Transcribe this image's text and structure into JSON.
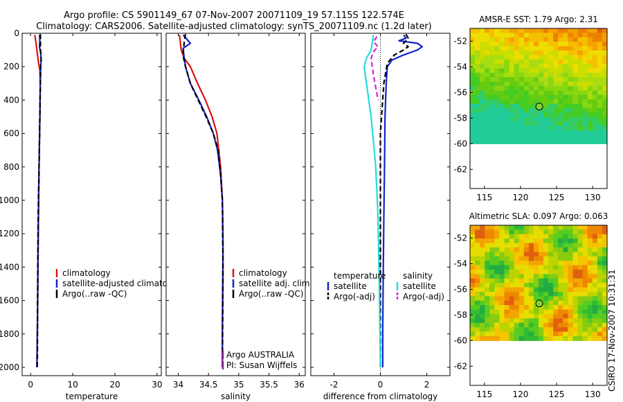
{
  "header": {
    "line1": "Argo profile: CS 5901149_67 07-Nov-2007 20071109_19 57.115S 122.574E",
    "line2": "Climatology: CARS2006. Satellite-adjusted climatology: synTS_20071109.nc (1.2d later)"
  },
  "credit": "CSIRO 17-Nov-2007 10:31:31",
  "colors": {
    "climatology": "#dd1111",
    "satellite": "#1122cc",
    "argo": "#000000",
    "salinity_satellite": "#22dddd",
    "salinity_argo": "#dd22dd",
    "platform": "#882299"
  },
  "chart_data": [
    {
      "type": "line",
      "xlabel": "temperature",
      "ylabel": "",
      "xlim": [
        -2,
        31
      ],
      "ylim": [
        2050,
        0
      ],
      "xticks": [
        0,
        10,
        20,
        30
      ],
      "yticks": [
        0,
        200,
        400,
        600,
        800,
        1000,
        1200,
        1400,
        1600,
        1800,
        2000
      ],
      "legend": [
        "climatology",
        "satellite-adjusted climatology",
        "Argo(..raw -QC)"
      ],
      "legend_position": "lower-right",
      "series": [
        {
          "name": "climatology",
          "color": "#dd1111",
          "dash": false,
          "x": [
            1.0,
            1.3,
            1.6,
            1.9,
            2.2,
            2.3,
            2.2,
            2.0,
            1.9,
            1.8,
            1.7,
            1.6,
            1.5
          ],
          "y": [
            10,
            60,
            120,
            180,
            220,
            300,
            500,
            800,
            1000,
            1200,
            1500,
            1800,
            2000
          ]
        },
        {
          "name": "satellite-adjusted climatology",
          "color": "#1122cc",
          "dash": false,
          "x": [
            2.1,
            2.2,
            2.1,
            2.4,
            2.5,
            2.4,
            2.3,
            2.2,
            2.0,
            1.9,
            1.8,
            1.7,
            1.6,
            1.5
          ],
          "y": [
            10,
            40,
            80,
            120,
            160,
            200,
            300,
            500,
            800,
            1000,
            1300,
            1600,
            1800,
            2000
          ]
        },
        {
          "name": "Argo(..raw -QC)",
          "color": "#000000",
          "dash": true,
          "x": [
            2.3,
            2.4,
            2.3,
            2.4,
            2.5,
            2.4,
            2.3,
            2.2,
            2.0,
            1.8,
            1.7,
            1.6
          ],
          "y": [
            5,
            40,
            80,
            110,
            150,
            200,
            300,
            500,
            800,
            1100,
            1500,
            2000
          ]
        }
      ]
    },
    {
      "type": "line",
      "xlabel": "salinity",
      "ylabel": "",
      "xlim": [
        33.8,
        36.1
      ],
      "ylim": [
        2050,
        0
      ],
      "xticks": [
        34,
        34.5,
        35,
        35.5,
        36
      ],
      "yticks": [
        0,
        200,
        400,
        600,
        800,
        1000,
        1200,
        1400,
        1600,
        1800,
        2000
      ],
      "legend": [
        "climatology",
        "satellite adj. clim.",
        "Argo(..raw -QC)"
      ],
      "legend_position": "lower-right",
      "annotations": [
        "Argo AUSTRALIA",
        "PI: Susan Wijffels"
      ],
      "series": [
        {
          "name": "climatology",
          "color": "#dd1111",
          "dash": false,
          "x": [
            34.02,
            34.05,
            34.1,
            34.2,
            34.32,
            34.45,
            34.56,
            34.64,
            34.7,
            34.73,
            34.74,
            34.74,
            34.73,
            34.73
          ],
          "y": [
            10,
            100,
            150,
            200,
            300,
            400,
            500,
            600,
            800,
            1000,
            1200,
            1500,
            1800,
            2000
          ]
        },
        {
          "name": "satellite adj. clim.",
          "color": "#1122cc",
          "dash": false,
          "x": [
            34.08,
            34.2,
            34.08,
            34.1,
            34.12,
            34.2,
            34.34,
            34.47,
            34.58,
            34.65,
            34.7,
            34.73,
            34.74,
            34.73,
            34.73
          ],
          "y": [
            10,
            60,
            90,
            150,
            200,
            300,
            400,
            500,
            600,
            700,
            850,
            1000,
            1300,
            1700,
            2000
          ]
        },
        {
          "name": "Argo(..raw -QC)",
          "color": "#000000",
          "dash": true,
          "x": [
            34.12,
            34.1,
            34.08,
            34.09,
            34.12,
            34.2,
            34.33,
            34.46,
            34.58,
            34.66,
            34.7,
            34.73,
            34.74,
            34.73
          ],
          "y": [
            5,
            50,
            120,
            150,
            200,
            300,
            400,
            500,
            600,
            700,
            850,
            1000,
            1400,
            2000
          ]
        },
        {
          "name": "platform",
          "color": "#882299",
          "dash": false,
          "x": [
            34.73,
            34.73
          ],
          "y": [
            1920,
            2000
          ]
        }
      ]
    },
    {
      "type": "line",
      "xlabel": "difference from climatology",
      "ylabel": "",
      "xlim": [
        -3,
        3
      ],
      "ylim": [
        2050,
        0
      ],
      "xticks": [
        -2,
        0,
        2
      ],
      "yticks": [
        0,
        200,
        400,
        600,
        800,
        1000,
        1200,
        1400,
        1600,
        1800,
        2000
      ],
      "legend_groups": [
        {
          "title": "temperature",
          "items": [
            "satellite",
            "Argo(-adj)"
          ]
        },
        {
          "title": "salinity",
          "items": [
            "satellite",
            "Argo(-adj)"
          ]
        }
      ],
      "legend_position": "lower-center",
      "series": [
        {
          "name": "temperature satellite",
          "color": "#1122cc",
          "dash": false,
          "x": [
            1.0,
            1.1,
            0.8,
            1.6,
            1.8,
            1.6,
            1.0,
            0.5,
            0.3,
            0.25,
            0.2,
            0.18,
            0.15,
            0.12,
            0.1,
            0.1
          ],
          "y": [
            10,
            30,
            45,
            60,
            80,
            100,
            130,
            160,
            200,
            300,
            500,
            800,
            1100,
            1500,
            1800,
            2000
          ]
        },
        {
          "name": "temperature Argo(-adj)",
          "color": "#000000",
          "dash": true,
          "x": [
            1.1,
            1.2,
            1.0,
            1.2,
            1.0,
            0.6,
            0.3,
            0.15,
            0.0,
            0.0,
            0.0
          ],
          "y": [
            5,
            30,
            60,
            80,
            100,
            130,
            180,
            300,
            600,
            1000,
            2000
          ]
        },
        {
          "name": "salinity satellite",
          "color": "#22dddd",
          "dash": false,
          "x": [
            -0.3,
            -0.4,
            -0.6,
            -0.7,
            -0.6,
            -0.4,
            -0.2,
            -0.1,
            -0.05,
            0.0
          ],
          "y": [
            10,
            100,
            150,
            200,
            300,
            500,
            800,
            1100,
            1500,
            2000
          ]
        },
        {
          "name": "salinity Argo(-adj)",
          "color": "#dd22dd",
          "dash": true,
          "x": [
            -0.15,
            -0.3,
            -0.1,
            -0.3,
            -0.4,
            -0.3,
            -0.1
          ],
          "y": [
            20,
            50,
            80,
            110,
            150,
            250,
            400
          ]
        }
      ]
    },
    {
      "type": "heatmap",
      "title": "AMSR-E SST: 1.79 Argo: 2.31",
      "xlim": [
        113,
        132
      ],
      "ylim": [
        -63.5,
        -51
      ],
      "xticks": [
        115,
        120,
        125,
        130
      ],
      "yticks": [
        -52,
        -54,
        -56,
        -58,
        -60,
        -62
      ],
      "data_south_limit": -60,
      "argo_marker": {
        "lon": 122.6,
        "lat": -57.1
      }
    },
    {
      "type": "heatmap",
      "title": "Altimetric SLA: 0.097 Argo: 0.063",
      "xlim": [
        113,
        132
      ],
      "ylim": [
        -63.5,
        -51
      ],
      "xticks": [
        115,
        120,
        125,
        130
      ],
      "yticks": [
        -52,
        -54,
        -56,
        -58,
        -60,
        -62
      ],
      "data_south_limit": -60,
      "argo_marker": {
        "lon": 122.6,
        "lat": -57.1
      }
    }
  ]
}
